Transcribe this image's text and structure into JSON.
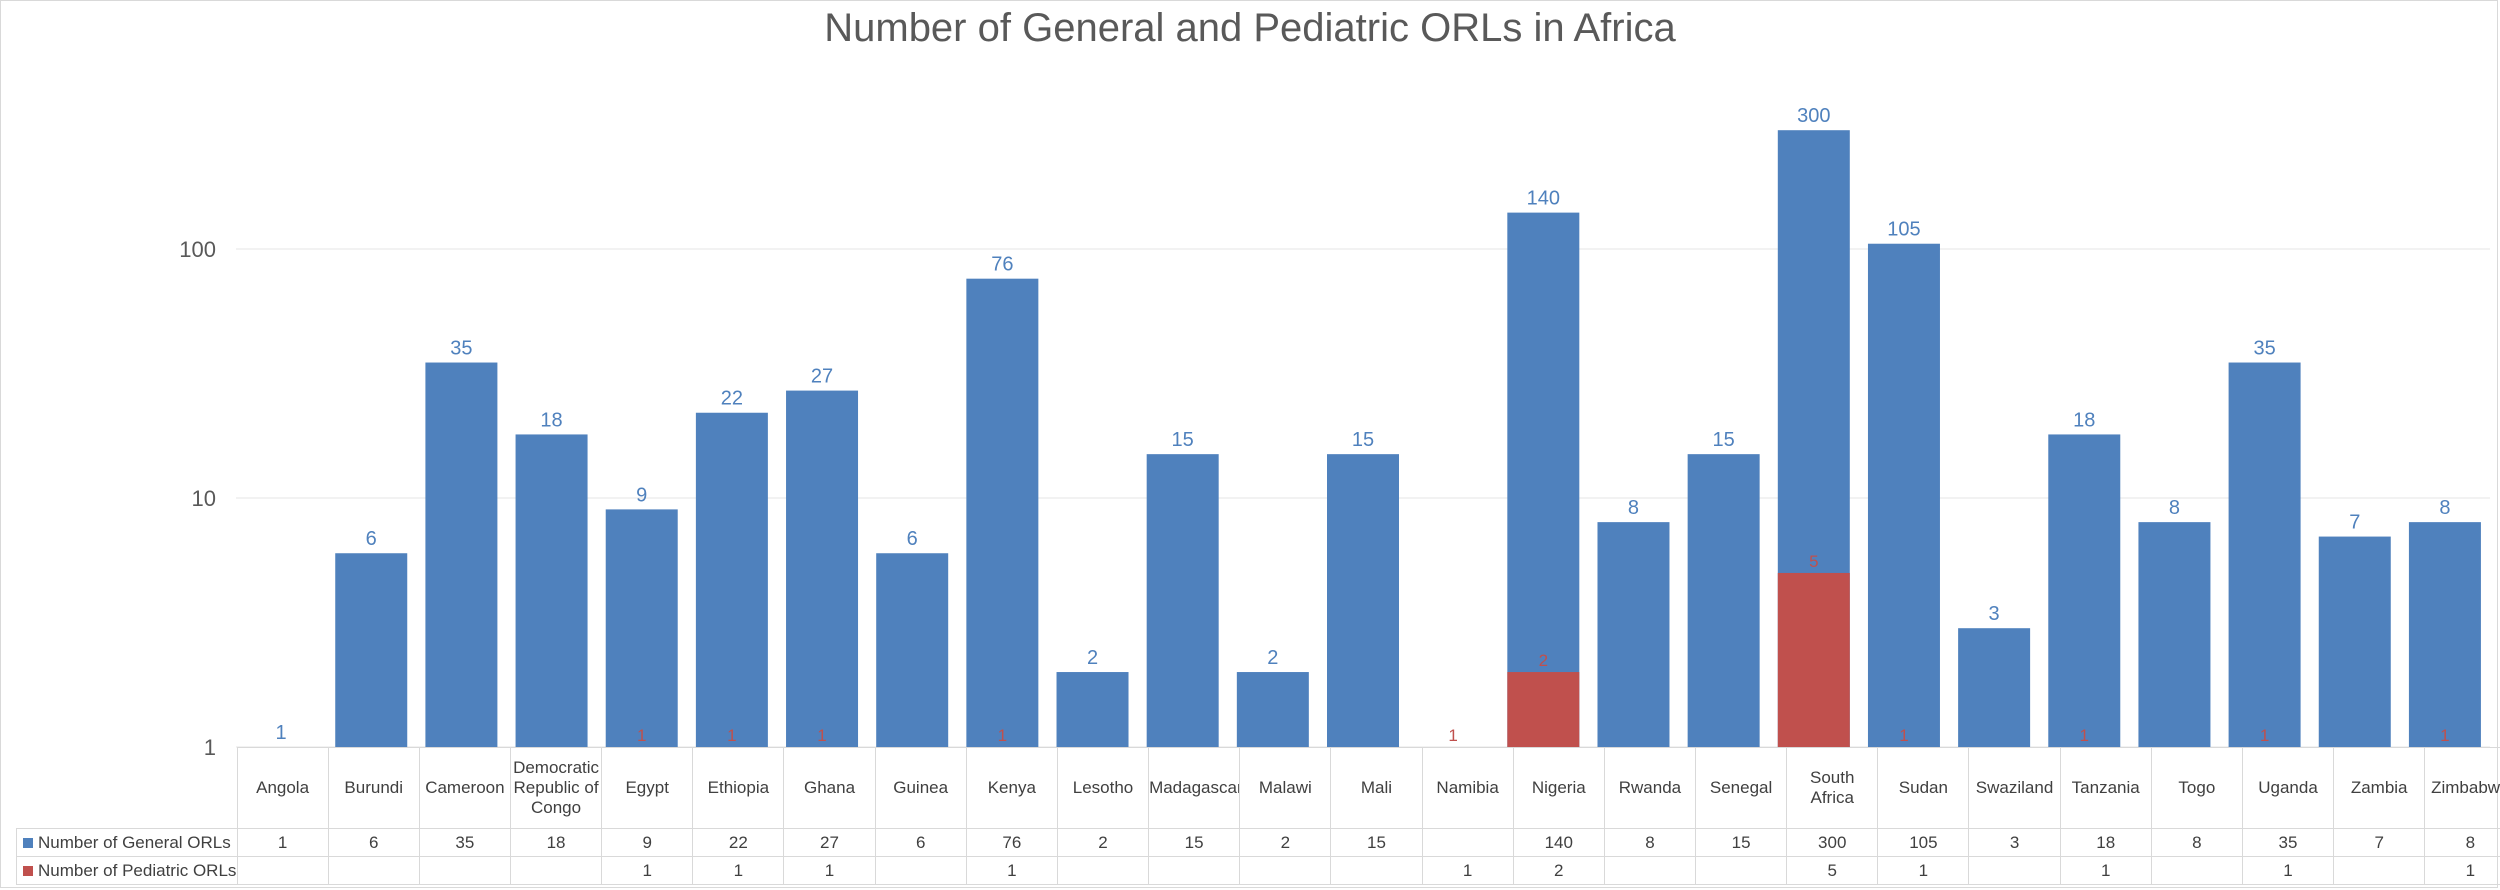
{
  "chart_data": {
    "type": "bar",
    "title": "Number of General and Pediatric ORLs in Africa",
    "y_scale": "log10",
    "ylim": [
      1,
      500
    ],
    "y_ticks": [
      1,
      10,
      100
    ],
    "y_tick_labels": [
      "1",
      "10",
      "100"
    ],
    "xlabel": "",
    "ylabel": "",
    "grid": true,
    "legend": "data-table-below",
    "categories": [
      "Angola",
      "Burundi",
      "Cameroon",
      "Democratic Republic of Congo",
      "Egypt",
      "Ethiopia",
      "Ghana",
      "Guinea",
      "Kenya",
      "Lesotho",
      "Madagascar",
      "Malawi",
      "Mali",
      "Namibia",
      "Nigeria",
      "Rwanda",
      "Senegal",
      "South Africa",
      "Sudan",
      "Swaziland",
      "Tanzania",
      "Togo",
      "Uganda",
      "Zambia",
      "Zimbabwe"
    ],
    "series": [
      {
        "name": "Number of General ORLs",
        "color": "#4f81bd",
        "values": [
          1,
          6,
          35,
          18,
          9,
          22,
          27,
          6,
          76,
          2,
          15,
          2,
          15,
          null,
          140,
          8,
          15,
          300,
          105,
          3,
          18,
          8,
          35,
          7,
          8
        ]
      },
      {
        "name": "Number of Pediatric ORLs",
        "color": "#c0504d",
        "values": [
          null,
          null,
          null,
          null,
          1,
          1,
          1,
          null,
          1,
          null,
          null,
          null,
          null,
          1,
          2,
          null,
          null,
          5,
          1,
          null,
          1,
          null,
          1,
          null,
          1
        ]
      }
    ]
  }
}
